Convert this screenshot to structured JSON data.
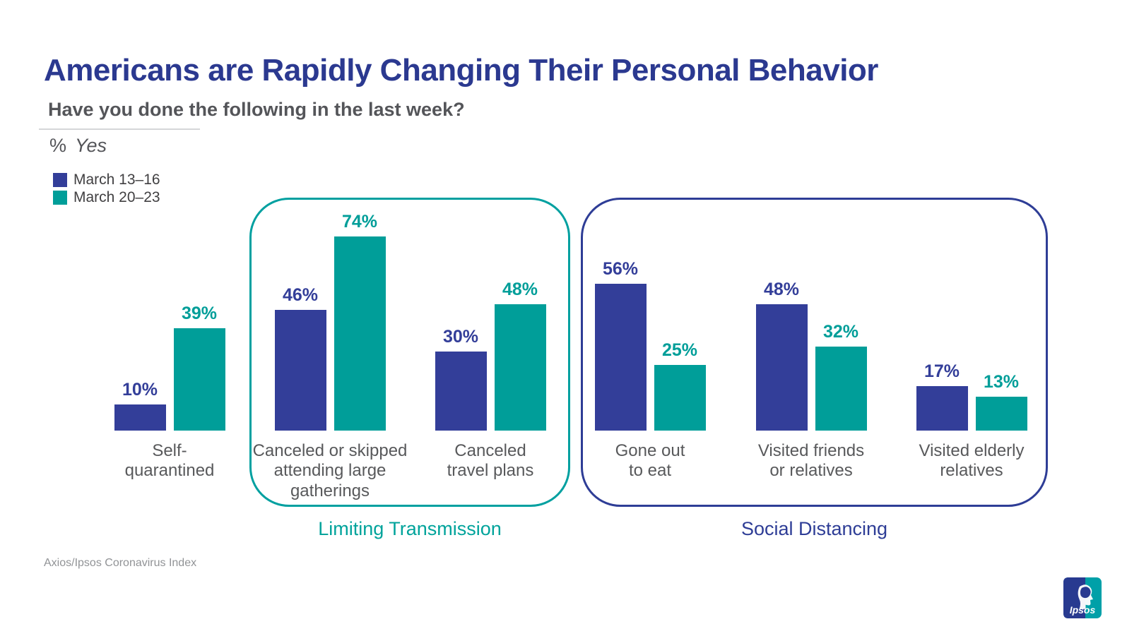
{
  "slide": {
    "title": "Americans are Rapidly Changing Their Personal Behavior",
    "question": "Have you done the following in the last week?",
    "unit": {
      "prefix": "%",
      "word": "Yes"
    },
    "source": "Axios/Ipsos Coronavirus Index",
    "logo_text": "Ipsos"
  },
  "colors": {
    "title_blue": "#2B3990",
    "question_gray": "#545559",
    "rule_gray": "#D5D6D8",
    "unit_gray": "#545559",
    "legend_text": "#414042",
    "category_gray": "#58595B",
    "source_gray": "#919396",
    "bar_blue": "#333E99",
    "bar_teal": "#009E99",
    "box_teal": "#00A0A0",
    "box_blue": "#2E3D96",
    "group_label_teal": "#00A39B",
    "group_label_blue": "#2E3D96",
    "logo_blue": "#283A90",
    "logo_teal": "#00A0A8"
  },
  "chart_data": {
    "type": "bar",
    "title": "Americans are Rapidly Changing Their Personal Behavior",
    "subtitle": "Have you done the following in the last week?",
    "unit": "% Yes",
    "value_suffix": "%",
    "grid": false,
    "legend_position": "top-left",
    "ylim": [
      0,
      100
    ],
    "categories": [
      "Self-quarantined",
      "Canceled or skipped attending large gatherings",
      "Canceled travel plans",
      "Gone out to eat",
      "Visited friends or relatives",
      "Visited elderly relatives"
    ],
    "category_label_lines": [
      "Self-\nquarantined",
      "Canceled or skipped\nattending large\ngatherings",
      "Canceled\ntravel plans",
      "Gone out\nto eat",
      "Visited friends\nor relatives",
      "Visited elderly\nrelatives"
    ],
    "series": [
      {
        "name": "March 13–16",
        "color": "#333E99",
        "values": [
          10,
          46,
          30,
          56,
          48,
          17
        ]
      },
      {
        "name": "March 20–23",
        "color": "#009E99",
        "values": [
          39,
          74,
          48,
          25,
          32,
          13
        ]
      }
    ],
    "groups": [
      {
        "label": "Limiting Transmission",
        "color": "#00A0A0",
        "label_color": "#00A39B",
        "category_indexes": [
          1,
          2
        ]
      },
      {
        "label": "Social Distancing",
        "color": "#2E3D96",
        "label_color": "#2E3D96",
        "category_indexes": [
          3,
          4,
          5
        ]
      }
    ]
  }
}
